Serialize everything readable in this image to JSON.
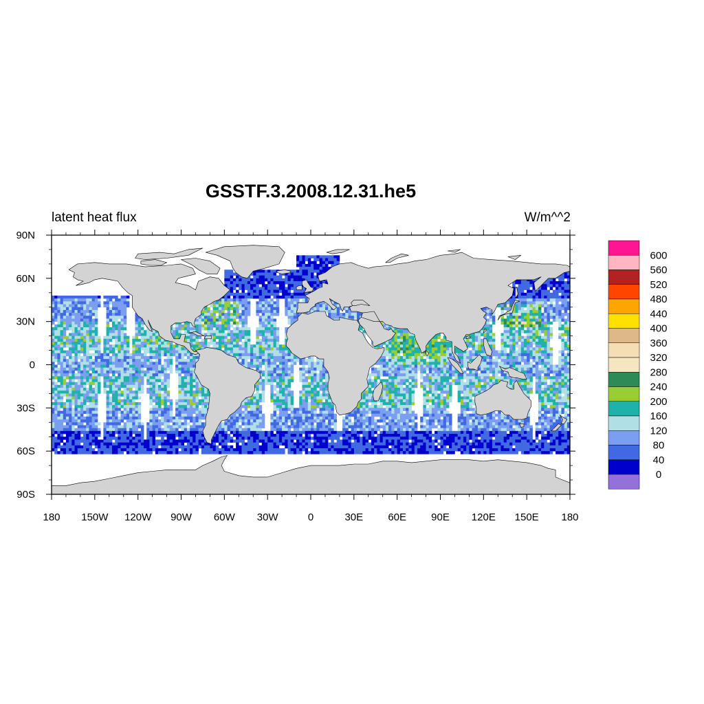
{
  "title": "GSSTF.3.2008.12.31.he5",
  "left_subtitle": "latent heat flux",
  "right_subtitle": "W/m^^2",
  "chart_data": {
    "type": "heatmap",
    "projection": "cylindrical equidistant",
    "lon_range": [
      -180,
      180
    ],
    "lat_range": [
      -90,
      90
    ],
    "x_ticks": [
      {
        "lon": -180,
        "label": "180"
      },
      {
        "lon": -150,
        "label": "150W"
      },
      {
        "lon": -120,
        "label": "120W"
      },
      {
        "lon": -90,
        "label": "90W"
      },
      {
        "lon": -60,
        "label": "60W"
      },
      {
        "lon": -30,
        "label": "30W"
      },
      {
        "lon": 0,
        "label": "0"
      },
      {
        "lon": 30,
        "label": "30E"
      },
      {
        "lon": 60,
        "label": "60E"
      },
      {
        "lon": 90,
        "label": "90E"
      },
      {
        "lon": 120,
        "label": "120E"
      },
      {
        "lon": 150,
        "label": "150E"
      },
      {
        "lon": 180,
        "label": "180"
      }
    ],
    "y_ticks": [
      {
        "lat": 90,
        "label": "90N"
      },
      {
        "lat": 60,
        "label": "60N"
      },
      {
        "lat": 30,
        "label": "30N"
      },
      {
        "lat": 0,
        "label": "0"
      },
      {
        "lat": -30,
        "label": "30S"
      },
      {
        "lat": -60,
        "label": "60S"
      },
      {
        "lat": -90,
        "label": "90S"
      }
    ],
    "land_color": "#d3d3d3",
    "missing_color": "#ffffff",
    "colorbar": {
      "colors": [
        "#9370db",
        "#0000cd",
        "#4169e1",
        "#7b9ef0",
        "#b0e0e6",
        "#20b2aa",
        "#9acd32",
        "#2e8b57",
        "#f5e6bf",
        "#f5deb3",
        "#deb887",
        "#ffe000",
        "#ffa500",
        "#ff4500",
        "#b22222",
        "#ffb6c1",
        "#ff1493"
      ],
      "labels": [
        "0",
        "40",
        "80",
        "120",
        "160",
        "200",
        "240",
        "280",
        "320",
        "360",
        "400",
        "440",
        "480",
        "520",
        "560",
        "600"
      ]
    }
  }
}
